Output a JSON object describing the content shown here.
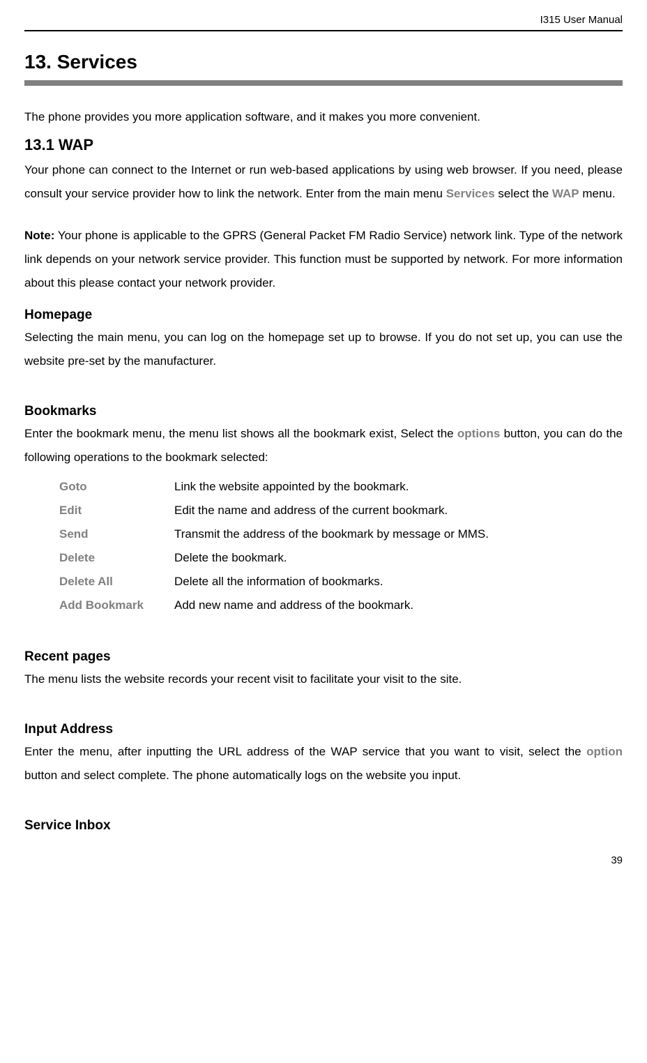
{
  "header": {
    "title": "I315 User Manual"
  },
  "chapter": {
    "number": "13.",
    "title": "Services"
  },
  "intro": {
    "text": "The phone provides you more application software, and it makes you more convenient."
  },
  "section_wap": {
    "heading": "13.1 WAP",
    "para1_a": "Your phone can connect to the Internet or run web-based applications by using web browser. If you need, please consult your service provider how to link the network.   Enter from the main menu ",
    "menu_services": "Services",
    "para1_b": " select the ",
    "menu_wap": "WAP",
    "para1_c": " menu.",
    "note_label": "Note:",
    "note_text": " Your phone is applicable to the GPRS (General Packet FM Radio Service) network link. Type of the network link depends on your network service provider. This function must be supported by network. For more information about this please contact your network provider."
  },
  "section_homepage": {
    "heading": "Homepage",
    "text": "Selecting the main menu, you can log on the homepage set up to browse. If you do not set up, you can use the website pre-set by the manufacturer."
  },
  "section_bookmarks": {
    "heading": "Bookmarks",
    "para_a": "Enter the bookmark menu, the menu list shows all the bookmark exist, Select the ",
    "options_ref": "options",
    "para_b": " button, you can do the following operations to the bookmark selected:",
    "options": [
      {
        "term": "Goto",
        "desc": "Link the website appointed by the bookmark."
      },
      {
        "term": "Edit",
        "desc": "Edit the name and address of the current bookmark."
      },
      {
        "term": "Send",
        "desc": "Transmit the address of the bookmark by message or MMS."
      },
      {
        "term": "Delete",
        "desc": "Delete the bookmark."
      },
      {
        "term": "Delete All",
        "desc": "Delete all the information of bookmarks."
      },
      {
        "term": "Add Bookmark",
        "desc": "Add new name and address of the bookmark."
      }
    ]
  },
  "section_recent": {
    "heading": "Recent pages",
    "text": "The menu lists the website records your recent visit to facilitate your visit to the site."
  },
  "section_input": {
    "heading": "Input Address",
    "para_a": "Enter the menu, after inputting the URL address of the WAP service that you want to visit, select the ",
    "option_ref": "option",
    "para_b": " button and select complete. The phone automatically logs on the website you input."
  },
  "section_service_inbox": {
    "heading": "Service Inbox"
  },
  "footer": {
    "page_number": "39"
  }
}
